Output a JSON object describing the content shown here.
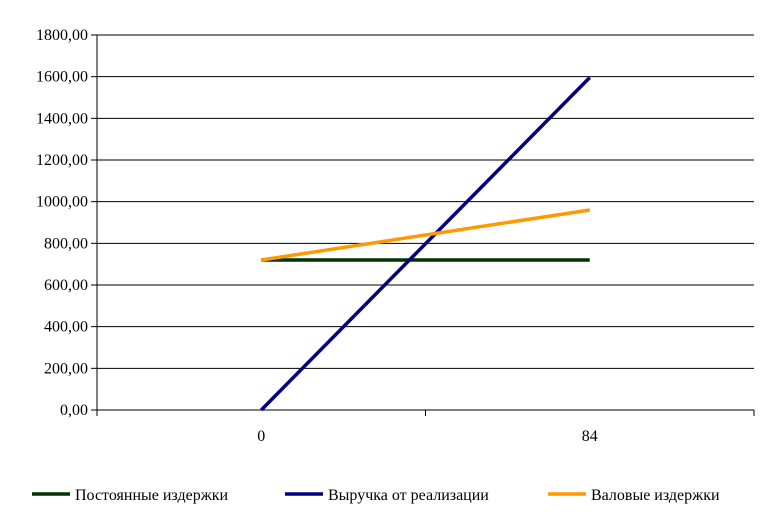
{
  "chart_data": {
    "type": "line",
    "title": "",
    "xlabel": "",
    "ylabel": "",
    "categories": [
      "0",
      "84"
    ],
    "ylim": [
      0,
      1800
    ],
    "yticks": [
      0,
      200,
      400,
      600,
      800,
      1000,
      1200,
      1400,
      1600,
      1800
    ],
    "ytick_labels": [
      "0,00",
      "200,00",
      "400,00",
      "600,00",
      "800,00",
      "1000,00",
      "1200,00",
      "1400,00",
      "1600,00",
      "1800,00"
    ],
    "grid": "horizontal",
    "legend_position": "bottom",
    "series": [
      {
        "name": "Постоянные издержки",
        "color": "#003300",
        "values": [
          720,
          720
        ]
      },
      {
        "name": "Выручка от реализации",
        "color": "#000080",
        "values": [
          0,
          1596
        ]
      },
      {
        "name": "Валовые издержки",
        "color": "#FF9900",
        "values": [
          720,
          960
        ]
      }
    ]
  }
}
